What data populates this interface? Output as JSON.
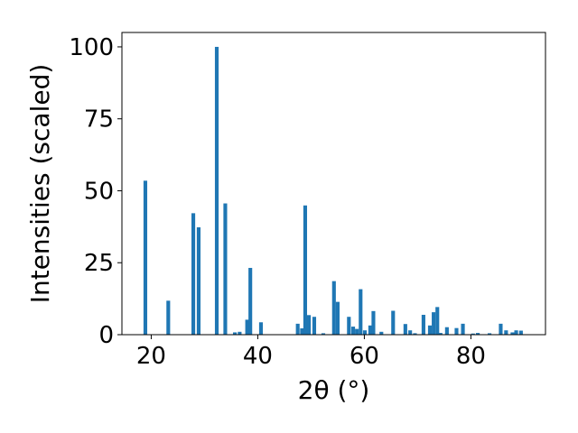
{
  "chart_data": {
    "type": "bar",
    "title": "",
    "xlabel": "2θ (°)",
    "ylabel": "Intensities (scaled)",
    "xlim": [
      14.5,
      94.0
    ],
    "ylim": [
      0,
      105
    ],
    "grid": false,
    "bar_width": 0.7,
    "bar_color": "#1f77b4",
    "x_ticks": [
      {
        "value": 20,
        "label": "20"
      },
      {
        "value": 40,
        "label": "40"
      },
      {
        "value": 60,
        "label": "60"
      },
      {
        "value": 80,
        "label": "80"
      }
    ],
    "y_ticks": [
      {
        "value": 0,
        "label": "0"
      },
      {
        "value": 25,
        "label": "25"
      },
      {
        "value": 50,
        "label": "50"
      },
      {
        "value": 75,
        "label": "75"
      },
      {
        "value": 100,
        "label": "100"
      }
    ],
    "x": [
      18.9,
      23.2,
      27.9,
      28.9,
      32.3,
      33.9,
      35.7,
      36.6,
      38.0,
      38.6,
      40.6,
      47.5,
      48.3,
      48.9,
      49.6,
      50.6,
      52.3,
      54.3,
      55.0,
      57.1,
      57.9,
      58.6,
      59.3,
      60.1,
      61.1,
      61.7,
      63.2,
      65.4,
      67.7,
      68.6,
      69.5,
      71.1,
      72.3,
      73.0,
      73.7,
      74.3,
      75.5,
      77.3,
      78.5,
      80.4,
      81.3,
      83.5,
      85.6,
      86.6,
      87.8,
      88.5,
      89.4
    ],
    "values": [
      53.5,
      11.8,
      42.2,
      37.3,
      100.0,
      45.6,
      0.8,
      1.0,
      5.2,
      23.2,
      4.3,
      3.8,
      2.2,
      44.9,
      6.8,
      6.2,
      0.5,
      18.6,
      11.4,
      6.2,
      2.8,
      2.0,
      15.8,
      1.5,
      3.2,
      8.2,
      1.0,
      8.3,
      3.7,
      1.5,
      0.5,
      6.9,
      3.2,
      7.8,
      9.6,
      0.6,
      2.6,
      2.3,
      3.8,
      0.4,
      0.6,
      0.5,
      3.8,
      1.5,
      0.8,
      1.5,
      1.4
    ]
  }
}
